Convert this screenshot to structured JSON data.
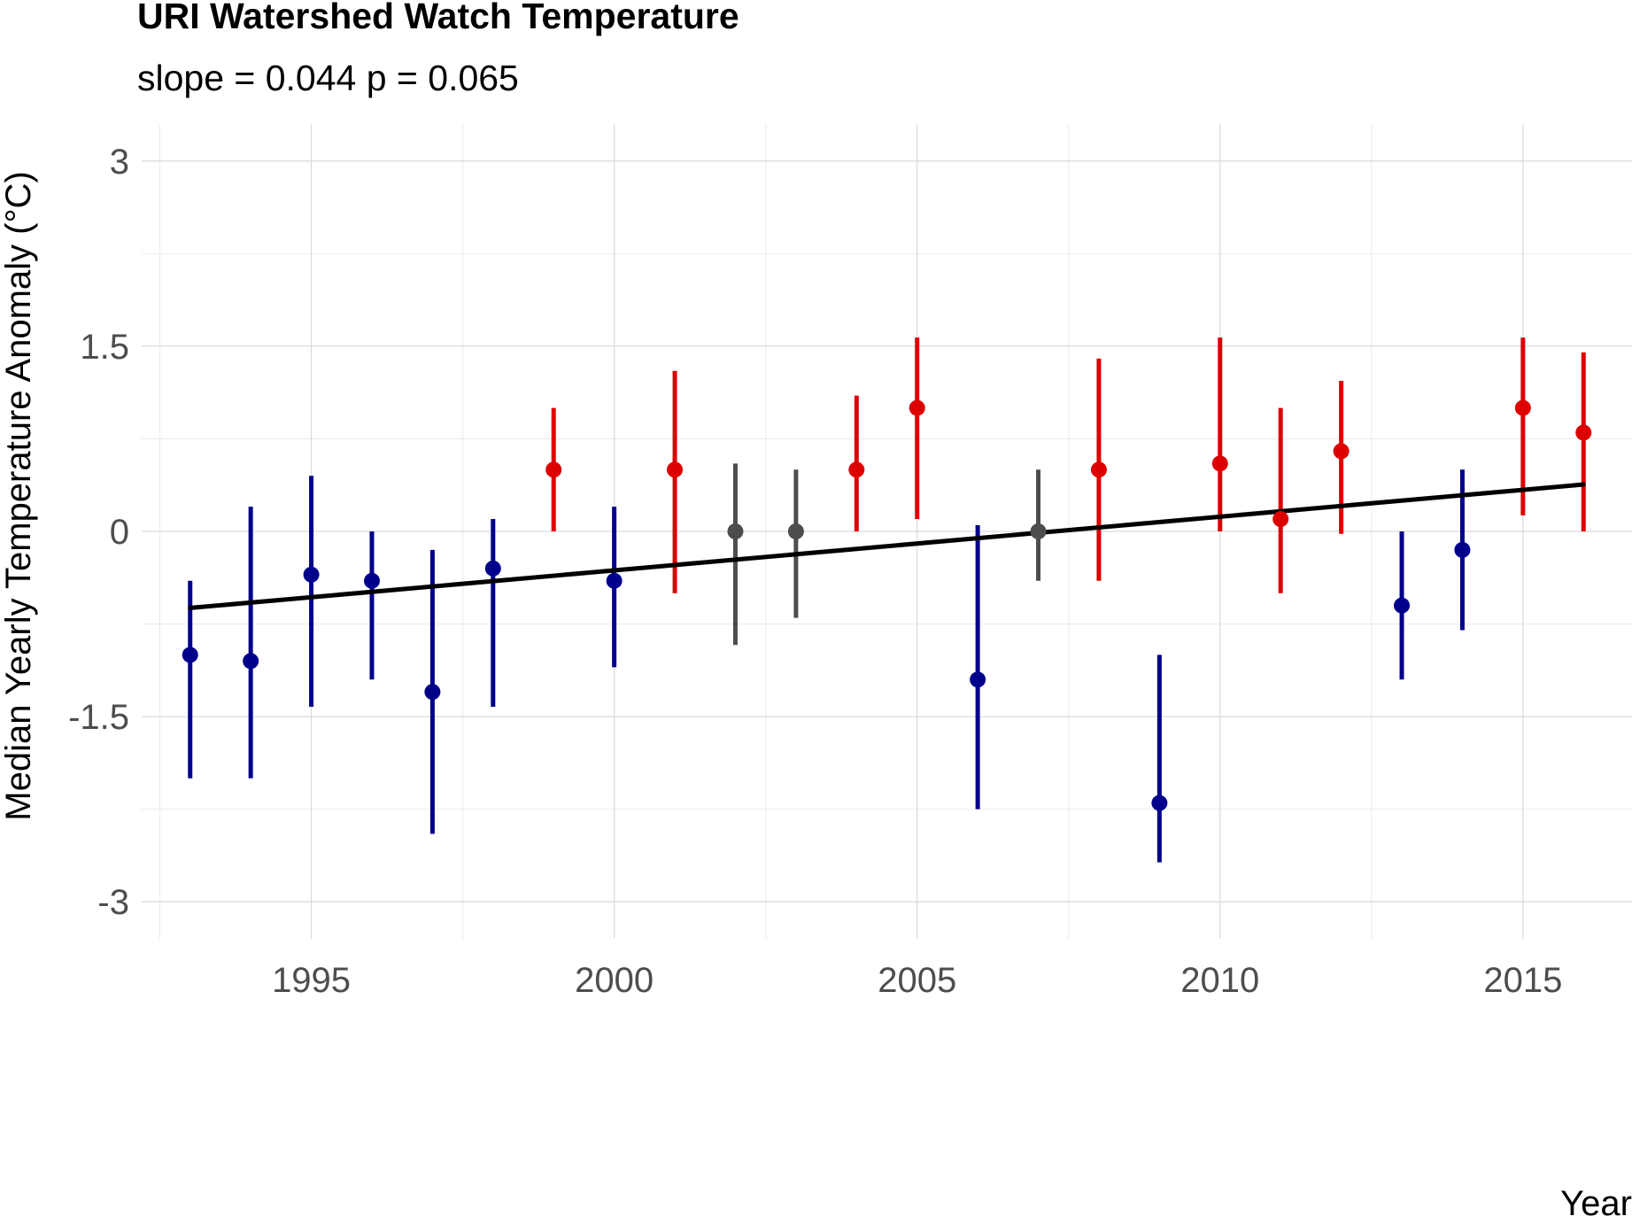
{
  "chart_data": {
    "type": "scatter",
    "title": "URI Watershed Watch Temperature",
    "subtitle": "slope = 0.044 p = 0.065",
    "xlabel": "Year",
    "ylabel": "Median Yearly Temperature Anomaly (°C)",
    "xlim": [
      1992.2,
      2016.8
    ],
    "ylim": [
      -3.3,
      3.3
    ],
    "x_ticks": [
      1995,
      2000,
      2005,
      2010,
      2015
    ],
    "x_tick_labels": [
      "1995",
      "2000",
      "2005",
      "2010",
      "2015"
    ],
    "y_ticks": [
      -3,
      -1.5,
      0,
      1.5,
      3
    ],
    "y_tick_labels": [
      "-3",
      "-1.5",
      "0",
      "1.5",
      "3"
    ],
    "y_minor_ticks": [
      -2.25,
      -0.75,
      0.75,
      2.25
    ],
    "grid": true,
    "legend": "none",
    "colors": {
      "below": "#00008b",
      "neutral": "#4d4d4d",
      "above": "#dd0000",
      "trend": "#000000"
    },
    "points": [
      {
        "x": 1993,
        "y": -1.0,
        "ymin": -2.0,
        "ymax": -0.4,
        "group": "below"
      },
      {
        "x": 1994,
        "y": -1.05,
        "ymin": -2.0,
        "ymax": 0.2,
        "group": "below"
      },
      {
        "x": 1995,
        "y": -0.35,
        "ymin": -1.42,
        "ymax": 0.45,
        "group": "below"
      },
      {
        "x": 1996,
        "y": -0.4,
        "ymin": -1.2,
        "ymax": 0.0,
        "group": "below"
      },
      {
        "x": 1997,
        "y": -1.3,
        "ymin": -2.45,
        "ymax": -0.15,
        "group": "below"
      },
      {
        "x": 1998,
        "y": -0.3,
        "ymin": -1.42,
        "ymax": 0.1,
        "group": "below"
      },
      {
        "x": 1999,
        "y": 0.5,
        "ymin": 0.0,
        "ymax": 1.0,
        "group": "above"
      },
      {
        "x": 2000,
        "y": -0.4,
        "ymin": -1.1,
        "ymax": 0.2,
        "group": "below"
      },
      {
        "x": 2001,
        "y": 0.5,
        "ymin": -0.5,
        "ymax": 1.3,
        "group": "above"
      },
      {
        "x": 2002,
        "y": 0.0,
        "ymin": -0.92,
        "ymax": 0.55,
        "group": "neutral"
      },
      {
        "x": 2003,
        "y": 0.0,
        "ymin": -0.7,
        "ymax": 0.5,
        "group": "neutral"
      },
      {
        "x": 2004,
        "y": 0.5,
        "ymin": 0.0,
        "ymax": 1.1,
        "group": "above"
      },
      {
        "x": 2005,
        "y": 1.0,
        "ymin": 0.1,
        "ymax": 1.57,
        "group": "above"
      },
      {
        "x": 2006,
        "y": -1.2,
        "ymin": -2.25,
        "ymax": 0.05,
        "group": "below"
      },
      {
        "x": 2007,
        "y": 0.0,
        "ymin": -0.4,
        "ymax": 0.5,
        "group": "neutral"
      },
      {
        "x": 2008,
        "y": 0.5,
        "ymin": -0.4,
        "ymax": 1.4,
        "group": "above"
      },
      {
        "x": 2009,
        "y": -2.2,
        "ymin": -2.68,
        "ymax": -1.0,
        "group": "below"
      },
      {
        "x": 2010,
        "y": 0.55,
        "ymin": 0.0,
        "ymax": 1.57,
        "group": "above"
      },
      {
        "x": 2011,
        "y": 0.1,
        "ymin": -0.5,
        "ymax": 1.0,
        "group": "above"
      },
      {
        "x": 2012,
        "y": 0.65,
        "ymin": -0.02,
        "ymax": 1.22,
        "group": "above"
      },
      {
        "x": 2013,
        "y": -0.6,
        "ymin": -1.2,
        "ymax": 0.0,
        "group": "below"
      },
      {
        "x": 2014,
        "y": -0.15,
        "ymin": -0.8,
        "ymax": 0.5,
        "group": "below"
      },
      {
        "x": 2015,
        "y": 1.0,
        "ymin": 0.13,
        "ymax": 1.57,
        "group": "above"
      },
      {
        "x": 2016,
        "y": 0.8,
        "ymin": 0.0,
        "ymax": 1.45,
        "group": "above"
      }
    ],
    "trend_line": {
      "x": [
        1993,
        2016
      ],
      "y": [
        -0.62,
        0.38
      ]
    }
  }
}
